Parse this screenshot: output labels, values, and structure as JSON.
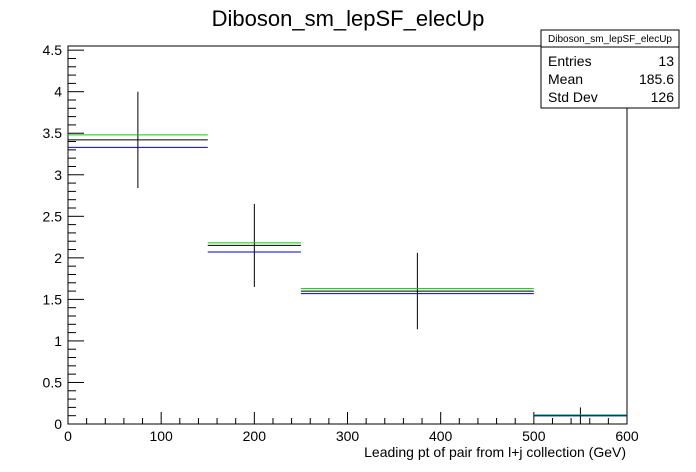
{
  "chart_data": {
    "type": "histogram",
    "title": "Diboson_sm_lepSF_elecUp",
    "xlabel": "Leading pt of pair from l+j collection (GeV)",
    "ylabel": "",
    "xlim": [
      0,
      600
    ],
    "ylim": [
      0,
      4.55
    ],
    "x_ticks": [
      0,
      100,
      200,
      300,
      400,
      500,
      600
    ],
    "y_ticks": [
      0,
      0.5,
      1,
      1.5,
      2,
      2.5,
      3,
      3.5,
      4,
      4.5
    ],
    "bins": [
      {
        "x_low": 0,
        "x_high": 150,
        "center": 75
      },
      {
        "x_low": 150,
        "x_high": 250,
        "center": 200
      },
      {
        "x_low": 250,
        "x_high": 500,
        "center": 375
      },
      {
        "x_low": 500,
        "x_high": 600,
        "center": 550
      }
    ],
    "series": [
      {
        "color": "#000000",
        "values": [
          3.42,
          2.15,
          1.6,
          0.1
        ],
        "errors": [
          0.58,
          0.5,
          0.46,
          0.1
        ]
      },
      {
        "color": "#00cc00",
        "values": [
          3.48,
          2.18,
          1.63,
          0.11
        ]
      },
      {
        "color": "#0000cc",
        "values": [
          3.33,
          2.07,
          1.57,
          0.1
        ]
      }
    ],
    "stats": {
      "title": "Diboson_sm_lepSF_elecUp",
      "rows": [
        {
          "label": "Entries",
          "value": "13"
        },
        {
          "label": "Mean",
          "value": "185.6"
        },
        {
          "label": "Std Dev",
          "value": "126"
        }
      ]
    },
    "grid": false,
    "legend": "none"
  }
}
